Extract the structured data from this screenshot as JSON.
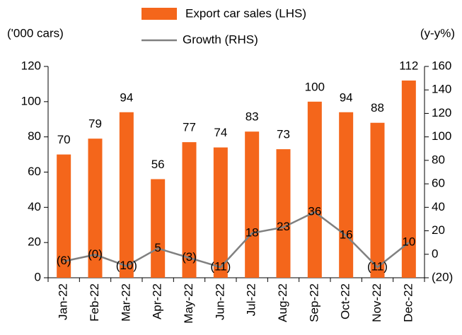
{
  "chart_data": {
    "type": "bar_line",
    "y_label": "('000 cars)",
    "y2_label": "(y-y%)",
    "categories": [
      "Jan-22",
      "Feb-22",
      "Mar-22",
      "Apr-22",
      "May-22",
      "Jun-22",
      "Jul-22",
      "Aug-22",
      "Sep-22",
      "Oct-22",
      "Nov-22",
      "Dec-22"
    ],
    "series": [
      {
        "name": "Export car sales (LHS)",
        "type": "bar",
        "color": "#f4661b",
        "axis": "y",
        "values": [
          70,
          79,
          94,
          56,
          77,
          74,
          83,
          73,
          100,
          94,
          88,
          112
        ]
      },
      {
        "name": "Growth (RHS)",
        "type": "line",
        "color": "#808080",
        "axis": "y2",
        "values": [
          -6,
          -0.3,
          -10,
          5,
          -3,
          -11,
          18,
          23,
          36,
          16,
          -11,
          10
        ],
        "value_labels": [
          "(6)",
          "(0)",
          "(10)",
          "5",
          "(3)",
          "(11)",
          "18",
          "23",
          "36",
          "16",
          "(11)",
          "10"
        ]
      }
    ],
    "ylim": [
      0,
      120
    ],
    "yticks": [
      0,
      20,
      40,
      60,
      80,
      100,
      120
    ],
    "y2lim": [
      -20,
      160
    ],
    "y2ticks": [
      {
        "value": -20,
        "label": "(20)"
      },
      0,
      20,
      40,
      60,
      80,
      100,
      120,
      140,
      160
    ]
  }
}
